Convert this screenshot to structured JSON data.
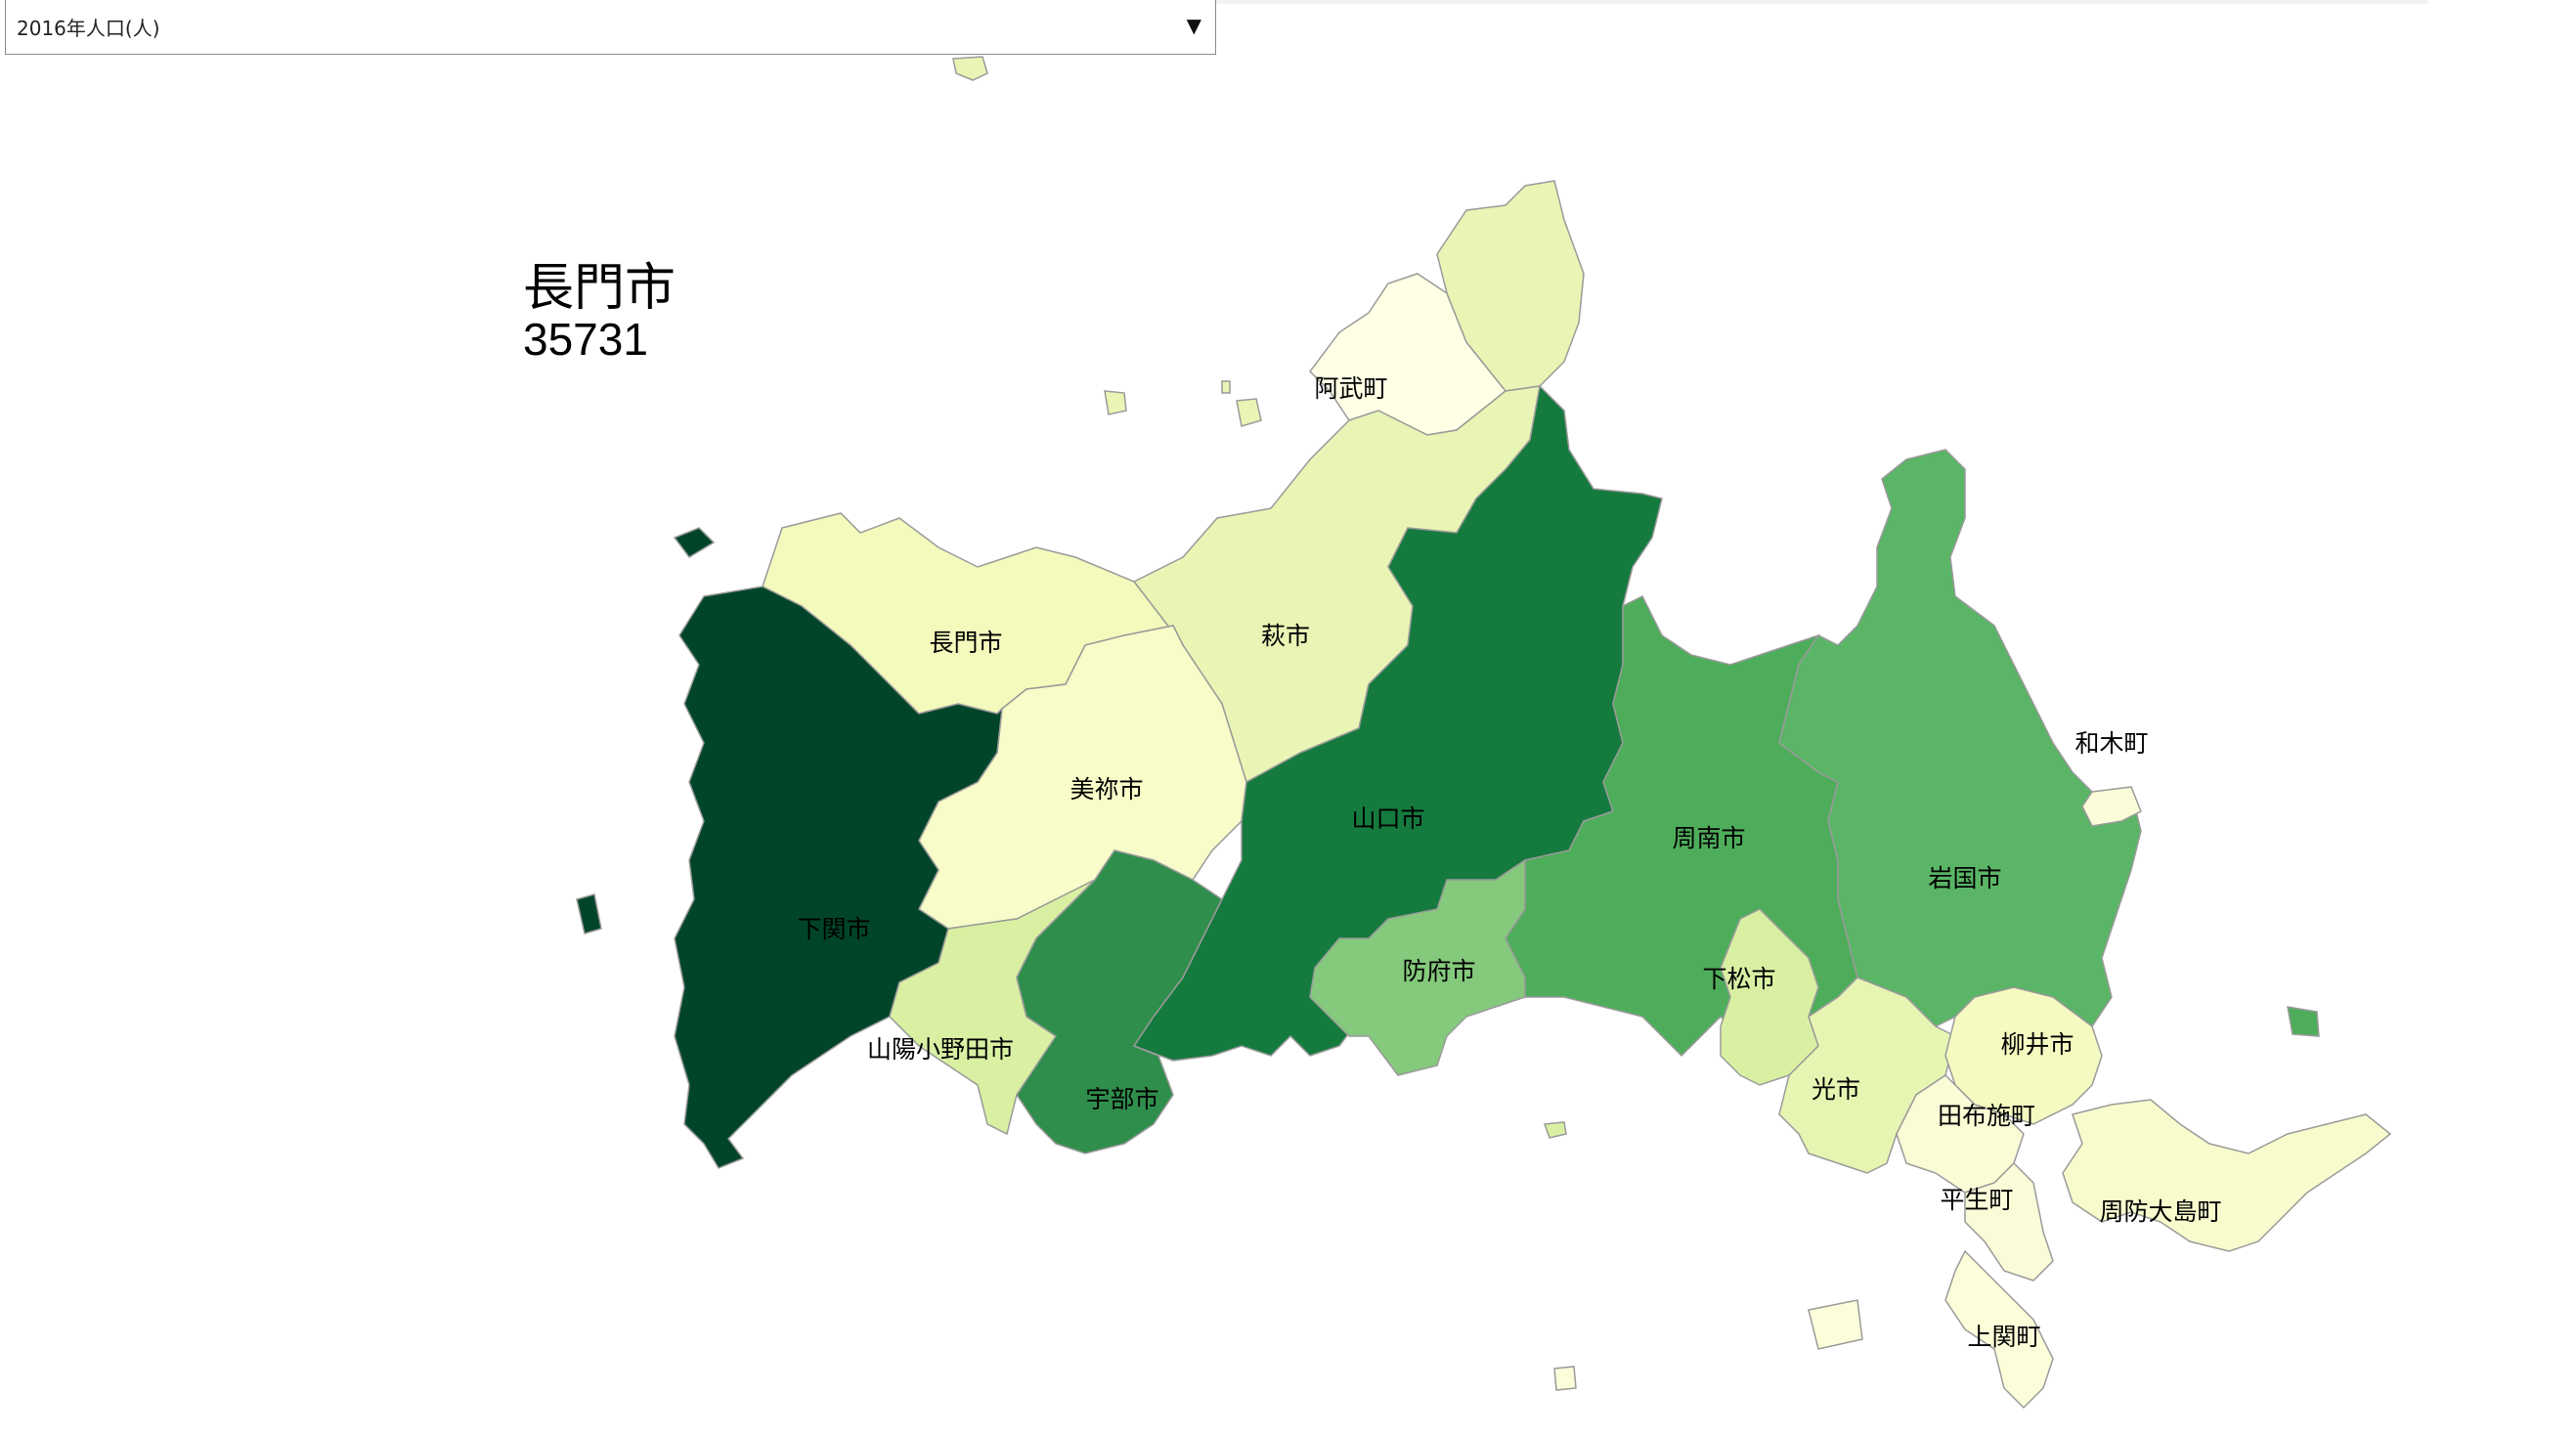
{
  "selector": {
    "selected": "2016年人口(人)",
    "arrow": "▼"
  },
  "info": {
    "name": "長門市",
    "value": "35731"
  },
  "municipalities": [
    {
      "name": "阿武町",
      "color": "#ffffe5"
    },
    {
      "name": "萩市",
      "color": "#e9f5b4"
    },
    {
      "name": "長門市",
      "color": "#f3fabc"
    },
    {
      "name": "美祢市",
      "color": "#f7fcc8"
    },
    {
      "name": "下関市",
      "color": "#004529"
    },
    {
      "name": "山陽小野田市",
      "color": "#d9f0a3"
    },
    {
      "name": "宇部市",
      "color": "#2f8e4c"
    },
    {
      "name": "山口市",
      "color": "#157a3e"
    },
    {
      "name": "防府市",
      "color": "#84c97c"
    },
    {
      "name": "周南市",
      "color": "#4ead5b"
    },
    {
      "name": "下松市",
      "color": "#d9f0a3"
    },
    {
      "name": "岩国市",
      "color": "#5ab566"
    },
    {
      "name": "和木町",
      "color": "#fbfdd9"
    },
    {
      "name": "光市",
      "color": "#e6f5b2"
    },
    {
      "name": "柳井市",
      "color": "#f5fbc0"
    },
    {
      "name": "田布施町",
      "color": "#fafcd6"
    },
    {
      "name": "平生町",
      "color": "#fafcd8"
    },
    {
      "name": "上関町",
      "color": "#fcfed9"
    },
    {
      "name": "周防大島町",
      "color": "#f8fccd"
    }
  ]
}
